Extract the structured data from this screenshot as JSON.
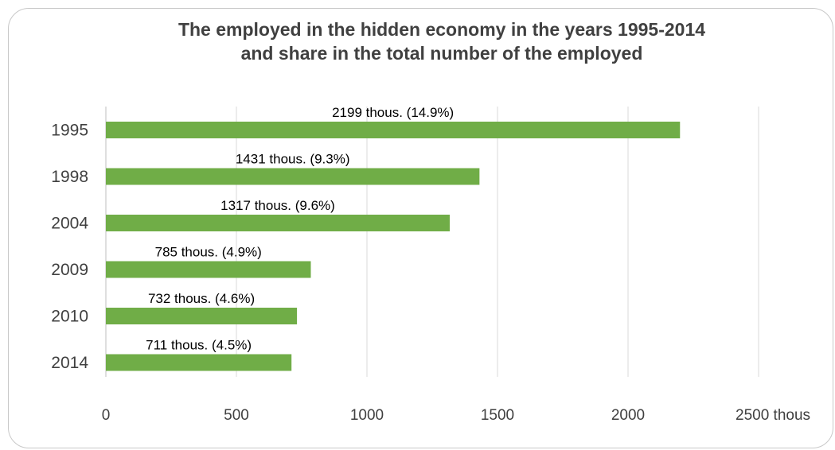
{
  "chart_data": {
    "type": "bar",
    "orientation": "horizontal",
    "title_line1": "The employed in the hidden economy in the years 1995-2014",
    "title_line2": "and share in the total number of the employed",
    "categories": [
      "1995",
      "1998",
      "2004",
      "2009",
      "2010",
      "2014"
    ],
    "values": [
      2199,
      1431,
      1317,
      785,
      732,
      711
    ],
    "data_labels": [
      "2199 thous. (14.9%)",
      "1431 thous. (9.3%)",
      "1317 thous. (9.6%)",
      "785 thous. (4.9%)",
      "732 thous. (4.6%)",
      "711 thous. (4.5%)"
    ],
    "x_ticks": [
      "0",
      "500",
      "1000",
      "1500",
      "2000",
      "2500 thous"
    ],
    "xlim": [
      0,
      2500
    ],
    "grid": true,
    "bar_color": "#70ad47",
    "grid_color": "#d9d9d9"
  }
}
